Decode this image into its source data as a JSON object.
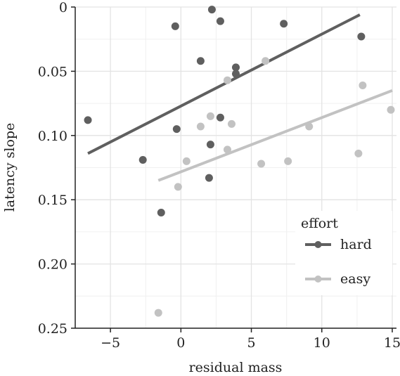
{
  "chart_data": {
    "type": "scatter",
    "title": "",
    "xlabel": "residual mass",
    "ylabel": "latency slope",
    "xlim": [
      -7.5,
      15.3
    ],
    "ylim": [
      0,
      0.25
    ],
    "y_reversed": true,
    "x_ticks": [
      -5,
      0,
      5,
      10,
      15
    ],
    "x_tick_labels": [
      "−5",
      "0",
      "5",
      "10",
      "15"
    ],
    "y_ticks": [
      0,
      0.05,
      0.1,
      0.15,
      0.2,
      0.25
    ],
    "y_tick_labels": [
      "0",
      "0.05",
      "0.10",
      "0.15",
      "0.20",
      "0.25"
    ],
    "grid": true,
    "legend": {
      "title": "effort",
      "position": "bottom-right"
    },
    "series": [
      {
        "name": "hard",
        "color": "#5f5f5f",
        "points": [
          {
            "x": -6.6,
            "y": 0.088
          },
          {
            "x": -0.4,
            "y": 0.015
          },
          {
            "x": 2.2,
            "y": 0.002
          },
          {
            "x": 2.8,
            "y": 0.011
          },
          {
            "x": 7.3,
            "y": 0.013
          },
          {
            "x": 12.8,
            "y": 0.023
          },
          {
            "x": 1.4,
            "y": 0.042
          },
          {
            "x": 3.9,
            "y": 0.047
          },
          {
            "x": 3.9,
            "y": 0.052
          },
          {
            "x": -0.3,
            "y": 0.095
          },
          {
            "x": 2.8,
            "y": 0.086
          },
          {
            "x": -2.7,
            "y": 0.119
          },
          {
            "x": 2.1,
            "y": 0.107
          },
          {
            "x": 2.0,
            "y": 0.133
          },
          {
            "x": -1.4,
            "y": 0.16
          }
        ],
        "fit": {
          "x": [
            -6.6,
            12.7
          ],
          "y": [
            0.114,
            0.006
          ]
        }
      },
      {
        "name": "easy",
        "color": "#c2c2c2",
        "points": [
          {
            "x": 6.0,
            "y": 0.042
          },
          {
            "x": 3.3,
            "y": 0.057
          },
          {
            "x": 12.9,
            "y": 0.061
          },
          {
            "x": 14.9,
            "y": 0.08
          },
          {
            "x": 2.1,
            "y": 0.085
          },
          {
            "x": 1.4,
            "y": 0.093
          },
          {
            "x": 3.6,
            "y": 0.091
          },
          {
            "x": 9.1,
            "y": 0.093
          },
          {
            "x": 3.3,
            "y": 0.111
          },
          {
            "x": 12.6,
            "y": 0.114
          },
          {
            "x": 0.4,
            "y": 0.12
          },
          {
            "x": 5.7,
            "y": 0.122
          },
          {
            "x": 7.6,
            "y": 0.12
          },
          {
            "x": -0.2,
            "y": 0.14
          },
          {
            "x": -1.6,
            "y": 0.238
          }
        ],
        "fit": {
          "x": [
            -1.6,
            15.0
          ],
          "y": [
            0.135,
            0.065
          ]
        }
      }
    ]
  }
}
